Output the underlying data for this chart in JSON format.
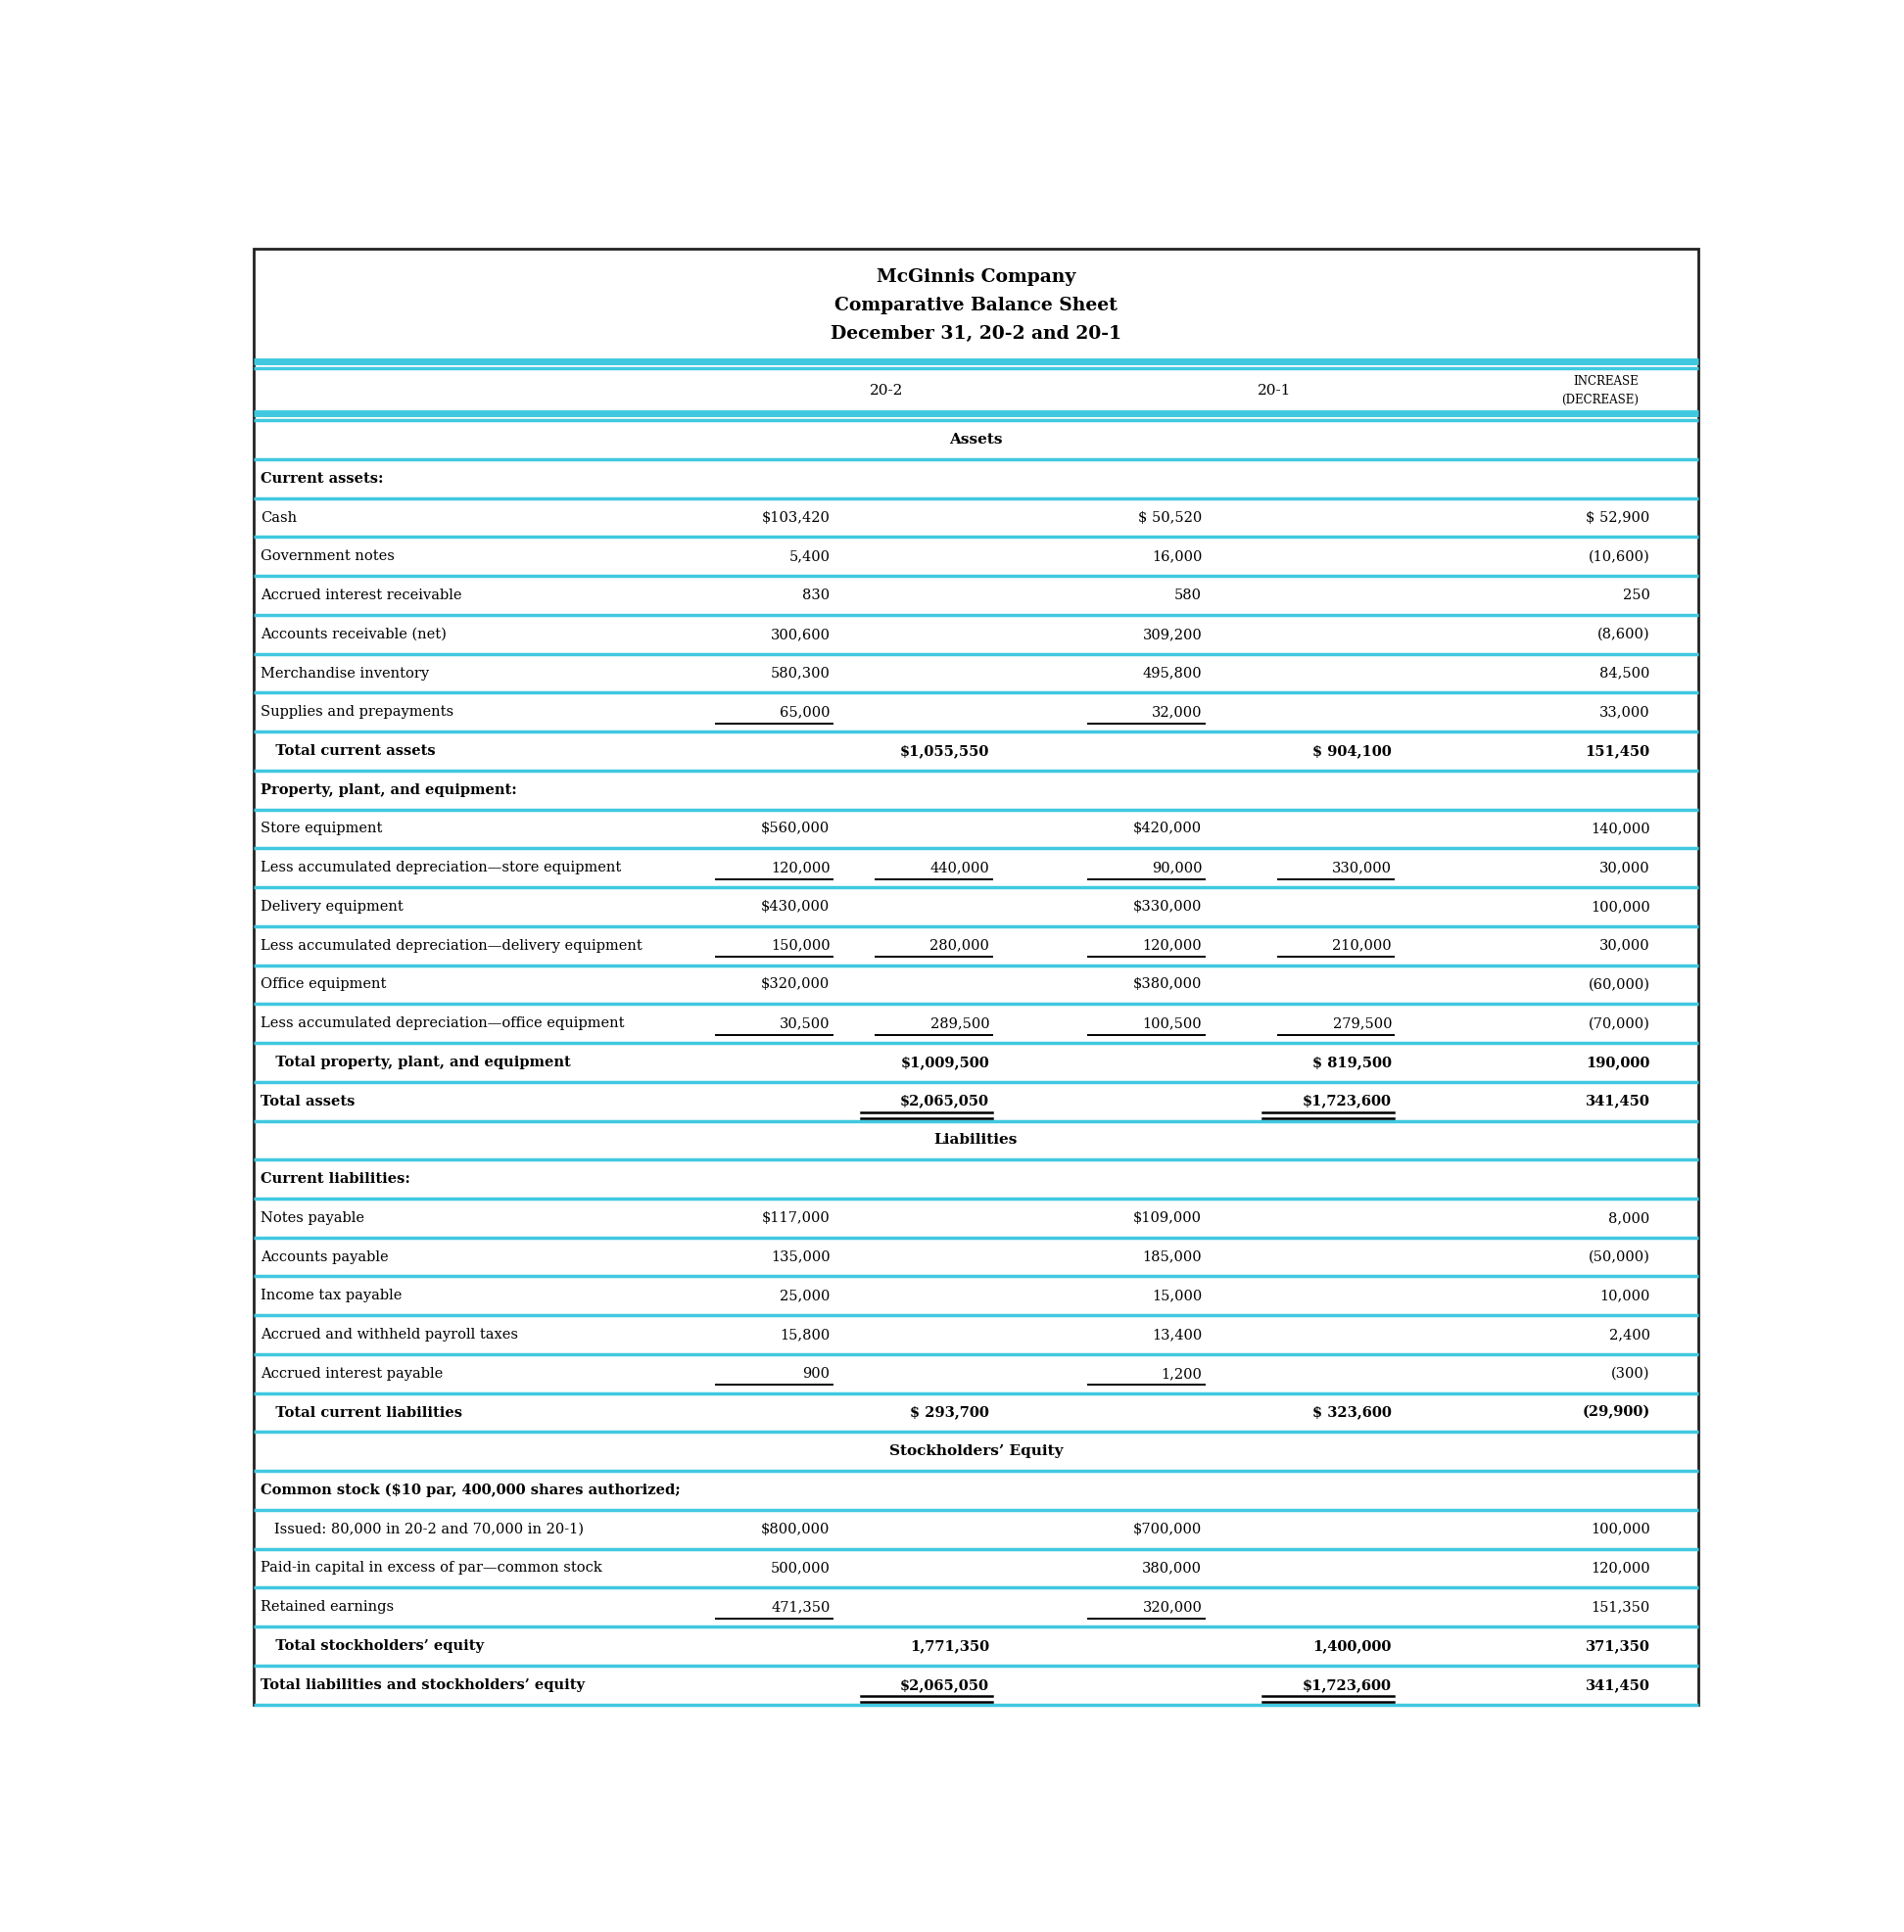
{
  "title_lines": [
    "McGinnis Company",
    "Comparative Balance Sheet",
    "December 31, 20-2 and 20-1"
  ],
  "bg_color": "#ffffff",
  "cyan_color": "#40c8e0",
  "dark_border": "#222222",
  "rows": [
    {
      "type": "section_center",
      "label": "Assets",
      "c1": "",
      "c2": "",
      "c3": "",
      "c4": "",
      "c5": ""
    },
    {
      "type": "section_left",
      "label": "Current assets:",
      "c1": "",
      "c2": "",
      "c3": "",
      "c4": "",
      "c5": ""
    },
    {
      "type": "data",
      "label": "Cash",
      "c1": "$103,420",
      "c2": "",
      "c3": "$ 50,520",
      "c4": "",
      "c5": "$ 52,900"
    },
    {
      "type": "data",
      "label": "Government notes",
      "c1": "5,400",
      "c2": "",
      "c3": "16,000",
      "c4": "",
      "c5": "(10,600)"
    },
    {
      "type": "data",
      "label": "Accrued interest receivable",
      "c1": "830",
      "c2": "",
      "c3": "580",
      "c4": "",
      "c5": "250"
    },
    {
      "type": "data",
      "label": "Accounts receivable (net)",
      "c1": "300,600",
      "c2": "",
      "c3": "309,200",
      "c4": "",
      "c5": "(8,600)"
    },
    {
      "type": "data",
      "label": "Merchandise inventory",
      "c1": "580,300",
      "c2": "",
      "c3": "495,800",
      "c4": "",
      "c5": "84,500"
    },
    {
      "type": "data_ul",
      "label": "Supplies and prepayments",
      "c1": "65,000",
      "c2": "",
      "c3": "32,000",
      "c4": "",
      "c5": "33,000"
    },
    {
      "type": "total",
      "label": "   Total current assets",
      "c1": "",
      "c2": "$1,055,550",
      "c3": "",
      "c4": "$ 904,100",
      "c5": "151,450"
    },
    {
      "type": "section_left",
      "label": "Property, plant, and equipment:",
      "c1": "",
      "c2": "",
      "c3": "",
      "c4": "",
      "c5": ""
    },
    {
      "type": "data",
      "label": "Store equipment",
      "c1": "$560,000",
      "c2": "",
      "c3": "$420,000",
      "c4": "",
      "c5": "140,000"
    },
    {
      "type": "data_ul",
      "label": "Less accumulated depreciation—store equipment",
      "c1": "120,000",
      "c2": "440,000",
      "c3": "90,000",
      "c4": "330,000",
      "c5": "30,000"
    },
    {
      "type": "data",
      "label": "Delivery equipment",
      "c1": "$430,000",
      "c2": "",
      "c3": "$330,000",
      "c4": "",
      "c5": "100,000"
    },
    {
      "type": "data_ul",
      "label": "Less accumulated depreciation—delivery equipment",
      "c1": "150,000",
      "c2": "280,000",
      "c3": "120,000",
      "c4": "210,000",
      "c5": "30,000"
    },
    {
      "type": "data",
      "label": "Office equipment",
      "c1": "$320,000",
      "c2": "",
      "c3": "$380,000",
      "c4": "",
      "c5": "(60,000)"
    },
    {
      "type": "data_ul",
      "label": "Less accumulated depreciation—office equipment",
      "c1": "30,500",
      "c2": "289,500",
      "c3": "100,500",
      "c4": "279,500",
      "c5": "(70,000)"
    },
    {
      "type": "total",
      "label": "   Total property, plant, and equipment",
      "c1": "",
      "c2": "$1,009,500",
      "c3": "",
      "c4": "$ 819,500",
      "c5": "190,000"
    },
    {
      "type": "total_dbl",
      "label": "Total assets",
      "c1": "",
      "c2": "$2,065,050",
      "c3": "",
      "c4": "$1,723,600",
      "c5": "341,450"
    },
    {
      "type": "section_center",
      "label": "Liabilities",
      "c1": "",
      "c2": "",
      "c3": "",
      "c4": "",
      "c5": ""
    },
    {
      "type": "section_left",
      "label": "Current liabilities:",
      "c1": "",
      "c2": "",
      "c3": "",
      "c4": "",
      "c5": ""
    },
    {
      "type": "data",
      "label": "Notes payable",
      "c1": "$117,000",
      "c2": "",
      "c3": "$109,000",
      "c4": "",
      "c5": "8,000"
    },
    {
      "type": "data",
      "label": "Accounts payable",
      "c1": "135,000",
      "c2": "",
      "c3": "185,000",
      "c4": "",
      "c5": "(50,000)"
    },
    {
      "type": "data",
      "label": "Income tax payable",
      "c1": "25,000",
      "c2": "",
      "c3": "15,000",
      "c4": "",
      "c5": "10,000"
    },
    {
      "type": "data",
      "label": "Accrued and withheld payroll taxes",
      "c1": "15,800",
      "c2": "",
      "c3": "13,400",
      "c4": "",
      "c5": "2,400"
    },
    {
      "type": "data_ul",
      "label": "Accrued interest payable",
      "c1": "900",
      "c2": "",
      "c3": "1,200",
      "c4": "",
      "c5": "(300)"
    },
    {
      "type": "total",
      "label": "   Total current liabilities",
      "c1": "",
      "c2": "$ 293,700",
      "c3": "",
      "c4": "$ 323,600",
      "c5": "(29,900)"
    },
    {
      "type": "section_center",
      "label": "Stockholders’ Equity",
      "c1": "",
      "c2": "",
      "c3": "",
      "c4": "",
      "c5": ""
    },
    {
      "type": "section_left",
      "label": "Common stock ($10 par, 400,000 shares authorized;",
      "c1": "",
      "c2": "",
      "c3": "",
      "c4": "",
      "c5": ""
    },
    {
      "type": "data",
      "label": "   Issued: 80,000 in 20-2 and 70,000 in 20-1)",
      "c1": "$800,000",
      "c2": "",
      "c3": "$700,000",
      "c4": "",
      "c5": "100,000"
    },
    {
      "type": "data",
      "label": "Paid-in capital in excess of par—common stock",
      "c1": "500,000",
      "c2": "",
      "c3": "380,000",
      "c4": "",
      "c5": "120,000"
    },
    {
      "type": "data_ul",
      "label": "Retained earnings",
      "c1": "471,350",
      "c2": "",
      "c3": "320,000",
      "c4": "",
      "c5": "151,350"
    },
    {
      "type": "total",
      "label": "   Total stockholders’ equity",
      "c1": "",
      "c2": "1,771,350",
      "c3": "",
      "c4": "1,400,000",
      "c5": "371,350"
    },
    {
      "type": "total_dbl",
      "label": "Total liabilities and stockholders’ equity",
      "c1": "",
      "c2": "$2,065,050",
      "c3": "",
      "c4": "$1,723,600",
      "c5": "341,450"
    }
  ]
}
